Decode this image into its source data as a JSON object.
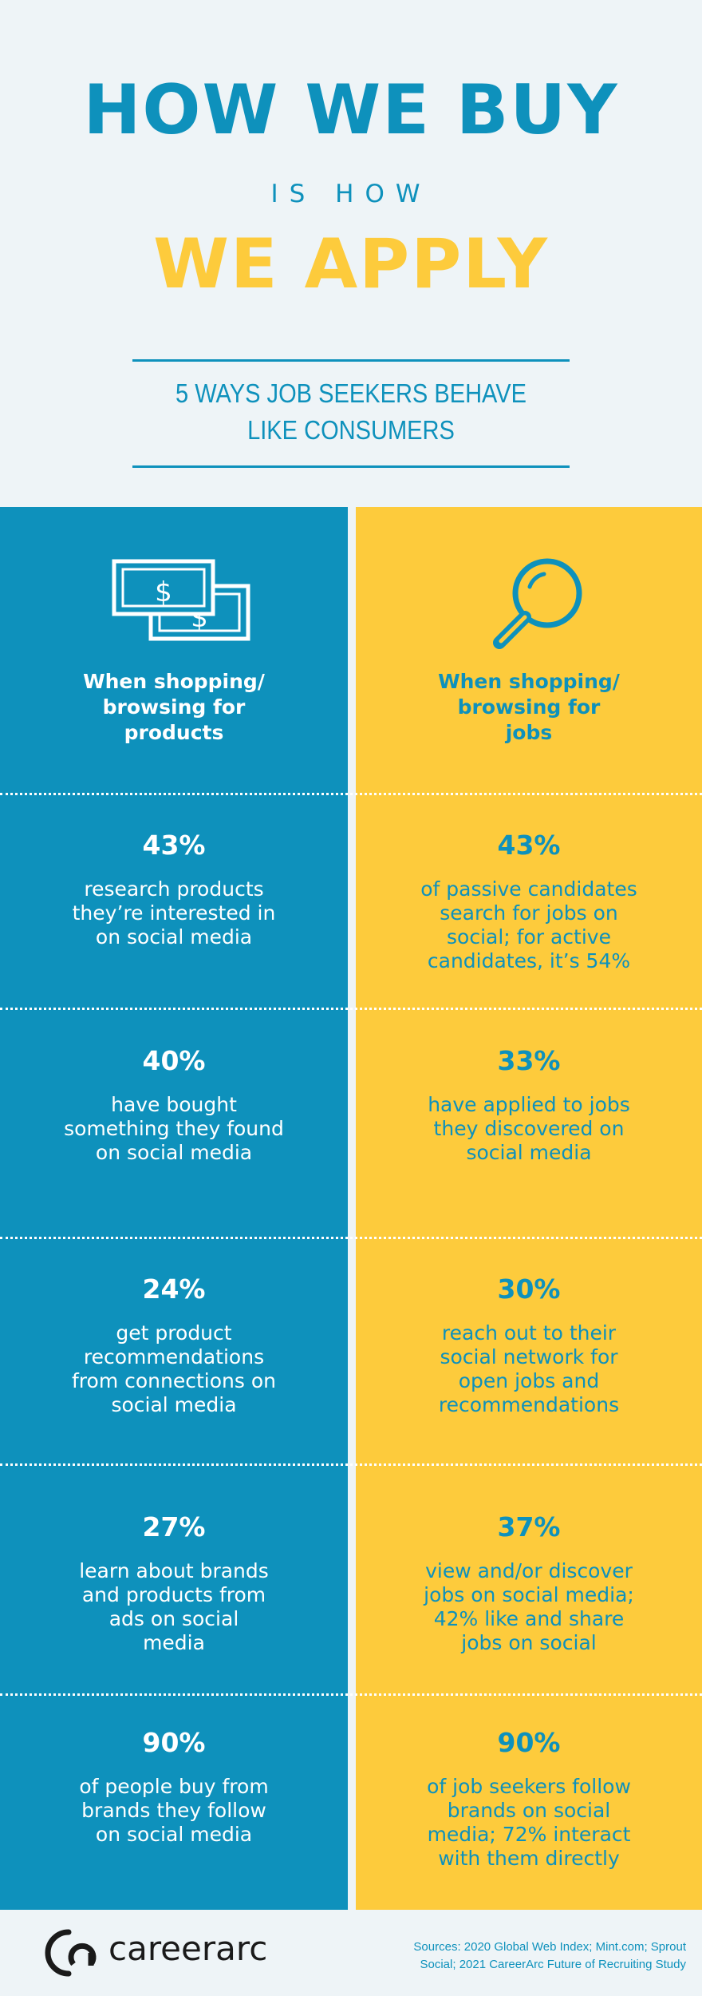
{
  "header": {
    "title_line1": "HOW WE BUY",
    "title_line2": "IS HOW",
    "title_line3": "WE APPLY",
    "subtitle_line1": "5 WAYS JOB SEEKERS BEHAVE",
    "subtitle_line2": "LIKE CONSUMERS"
  },
  "columns": {
    "left": {
      "icon": "money-bills-icon",
      "heading_line1": "When shopping/",
      "heading_line2": "browsing for",
      "heading_line3": "products"
    },
    "right": {
      "icon": "magnifying-glass-icon",
      "heading_line1": "When shopping/",
      "heading_line2": "browsing for",
      "heading_line3": "jobs"
    }
  },
  "stats": [
    {
      "left": {
        "pct": "43%",
        "lines": [
          "research products",
          "they’re interested in",
          "on social media"
        ]
      },
      "right": {
        "pct": "43%",
        "lines": [
          "of passive candidates",
          "search for jobs on",
          "social; for active",
          "candidates, it’s 54%"
        ]
      }
    },
    {
      "left": {
        "pct": "40%",
        "lines": [
          "have bought",
          "something they found",
          "on social media"
        ]
      },
      "right": {
        "pct": "33%",
        "lines": [
          "have applied to jobs",
          "they discovered on",
          "social media"
        ]
      }
    },
    {
      "left": {
        "pct": "24%",
        "lines": [
          "get product",
          "recommendations",
          "from connections on",
          "social media"
        ]
      },
      "right": {
        "pct": "30%",
        "lines": [
          "reach out to their",
          "social network for",
          "open jobs and",
          "recommendations"
        ]
      }
    },
    {
      "left": {
        "pct": "27%",
        "lines": [
          "learn about brands",
          "and products from",
          "ads on social",
          "media"
        ]
      },
      "right": {
        "pct": "37%",
        "lines": [
          "view and/or discover",
          "jobs on social media;",
          "42% like and share",
          "jobs on social"
        ]
      }
    },
    {
      "left": {
        "pct": "90%",
        "lines": [
          "of people buy from",
          "brands they follow",
          "on social media"
        ]
      },
      "right": {
        "pct": "90%",
        "lines": [
          "of job seekers follow",
          "brands on social",
          "media; 72% interact",
          "with them directly"
        ]
      }
    }
  ],
  "footer": {
    "logo_text": "careerarc",
    "logo_icon": "careerarc-logo-icon",
    "sources_line1": "Sources: 2020 Global Web Index; Mint.com; Sprout",
    "sources_line2": "Social; 2021 CareerArc Future of Recruiting Study"
  },
  "colors": {
    "background": "#EEF4F7",
    "blue": "#0E91BC",
    "yellow": "#FDCB3C",
    "white": "#FFFFFF"
  }
}
